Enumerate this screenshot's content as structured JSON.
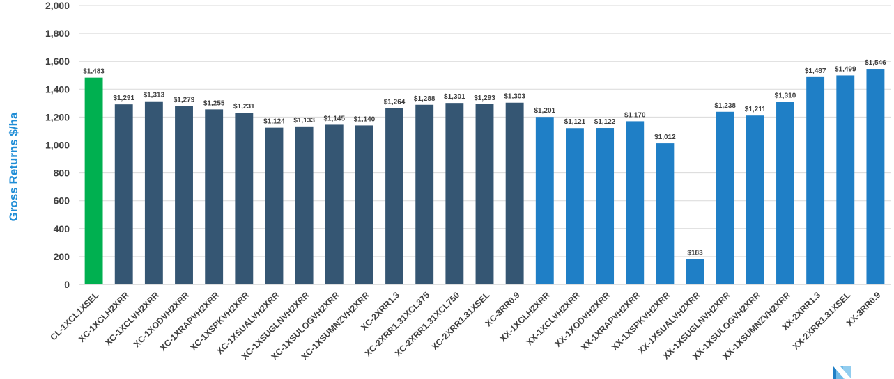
{
  "chart_data": {
    "type": "bar",
    "title": "",
    "xlabel": "",
    "ylabel": "Gross Returns $/ha",
    "ylim": [
      0,
      2000
    ],
    "yticks": [
      0,
      200,
      400,
      600,
      800,
      1000,
      1200,
      1400,
      1600,
      1800,
      2000
    ],
    "ytick_labels": [
      "0",
      "200",
      "400",
      "600",
      "800",
      "1,000",
      "1,200",
      "1,400",
      "1,600",
      "1,800",
      "2,000"
    ],
    "grid": true,
    "legend": "none",
    "categories": [
      "CL-1XCL1XSEL",
      "XC-1XCLH2XRR",
      "XC-1XCLVH2XRR",
      "XC-1XODVH2XRR",
      "XC-1XRAPVH2XRR",
      "XC-1XSPKVH2XRR",
      "XC-1XSUALVH2XRR",
      "XC-1XSUGLNVH2XRR",
      "XC-1XSULOGVH2XRR",
      "XC-1XSUMNZVH2XRR",
      "XC-2XRR1.3",
      "XC-2XRR1.31XCL375",
      "XC-2XRR1.31XCL750",
      "XC-2XRR1.31XSEL",
      "XC-3RR0.9",
      "XX-1XCLH2XRR",
      "XX-1XCLVH2XRR",
      "XX-1XODVH2XRR",
      "XX-1XRAPVH2XRR",
      "XX-1XSPKVH2XRR",
      "XX-1XSUALVH2XRR",
      "XX-1XSUGLNVH2XRR",
      "XX-1XSULOGVH2XRR",
      "XX-1XSUMNZVH2XRR",
      "XX-2XRR1.3",
      "XX-2XRR1.31XSEL",
      "XX-3RR0.9"
    ],
    "values": [
      1483,
      1291,
      1313,
      1279,
      1255,
      1231,
      1124,
      1133,
      1145,
      1140,
      1264,
      1288,
      1301,
      1293,
      1303,
      1201,
      1121,
      1122,
      1170,
      1012,
      183,
      1238,
      1211,
      1310,
      1487,
      1499,
      1546
    ],
    "value_labels": [
      "$1,483",
      "$1,291",
      "$1,313",
      "$1,279",
      "$1,255",
      "$1,231",
      "$1,124",
      "$1,133",
      "$1,145",
      "$1,140",
      "$1,264",
      "$1,288",
      "$1,301",
      "$1,293",
      "$1,303",
      "$1,201",
      "$1,121",
      "$1,122",
      "$1,170",
      "$1,012",
      "$183",
      "$1,238",
      "$1,211",
      "$1,310",
      "$1,487",
      "$1,499",
      "$1,546"
    ],
    "colors": {
      "CL": "#00b050",
      "XC": "#355673",
      "XX": "#1f7fc6",
      "ylabel": "#1f8dd6",
      "grid": "#d9d9d9",
      "axis": "#bfbfbf"
    }
  },
  "logo": {
    "name": "logo-icon",
    "colors": [
      "#1f7fc6",
      "#7fc4ec"
    ]
  }
}
